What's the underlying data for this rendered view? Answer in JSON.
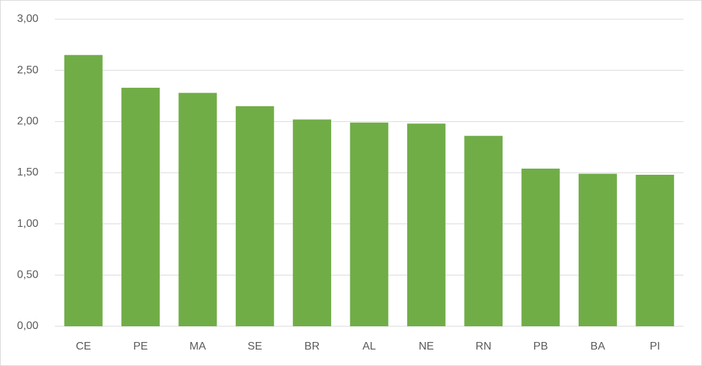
{
  "chart_data": {
    "type": "bar",
    "categories": [
      "CE",
      "PE",
      "MA",
      "SE",
      "BR",
      "AL",
      "NE",
      "RN",
      "PB",
      "BA",
      "PI"
    ],
    "values": [
      2.65,
      2.33,
      2.28,
      2.15,
      2.02,
      1.99,
      1.98,
      1.86,
      1.54,
      1.49,
      1.48
    ],
    "color": "#70ad47",
    "ylim": [
      0,
      3
    ],
    "yticks": [
      {
        "value": 0,
        "label": "0,00"
      },
      {
        "value": 0.5,
        "label": "0,50"
      },
      {
        "value": 1,
        "label": "1,00"
      },
      {
        "value": 1.5,
        "label": "1,50"
      },
      {
        "value": 2,
        "label": "2,00"
      },
      {
        "value": 2.5,
        "label": "2,50"
      },
      {
        "value": 3,
        "label": "3,00"
      }
    ],
    "grid": true
  }
}
